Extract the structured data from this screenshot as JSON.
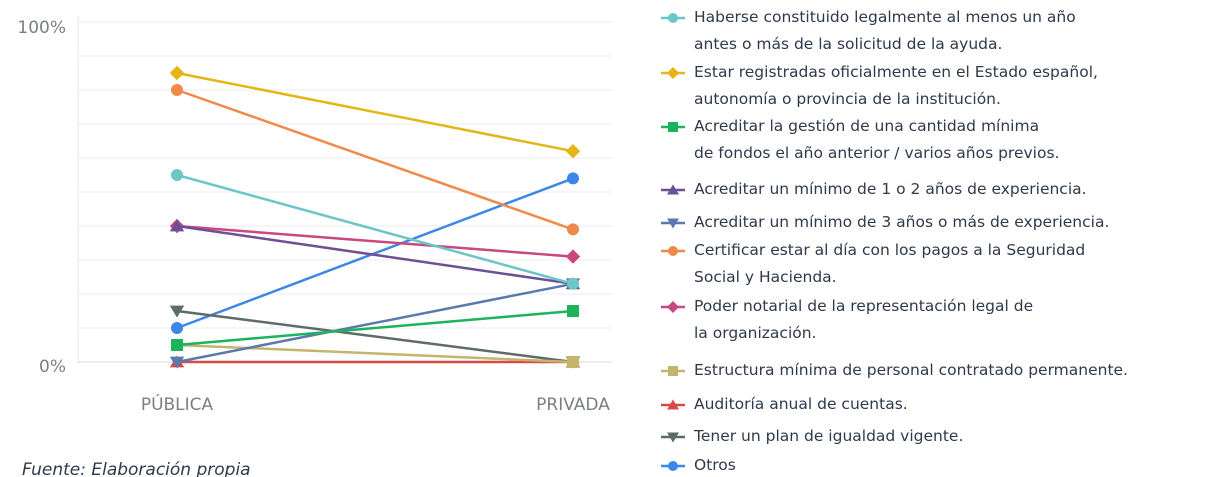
{
  "chart_data": {
    "type": "line",
    "source": "Fuente: Elaboración propia",
    "categories": [
      "PÚBLICA",
      "PRIVADA"
    ],
    "ylim": [
      0,
      100
    ],
    "yticks": [
      {
        "value": 0,
        "label": "0%"
      },
      {
        "value": 100,
        "label": "100%"
      }
    ],
    "grid_yticks": [
      10,
      20,
      30,
      40,
      50,
      60,
      70,
      80,
      90
    ],
    "grid": true,
    "legend": "right",
    "series": [
      {
        "name": "Haberse constituido legalmente al menos un año\nantes o más de la solicitud de la ayuda.",
        "color": "#6cc6c8",
        "marker": "circle",
        "values": [
          55,
          23
        ]
      },
      {
        "name": "Estar registradas oficialmente en el Estado español,\nautonomía o provincia de la institución.",
        "color": "#e4b514",
        "marker": "diamond",
        "values": [
          85,
          62
        ]
      },
      {
        "name": "Acreditar la gestión de una cantidad mínima\nde fondos el año anterior / varios años previos.",
        "color": "#1db35c",
        "marker": "square",
        "values": [
          5,
          15
        ]
      },
      {
        "name": "Acreditar un mínimo de 1 o 2 años de experiencia.",
        "color": "#6d4f95",
        "marker": "triangle-up",
        "values": [
          40,
          23
        ]
      },
      {
        "name": "Acreditar un mínimo de 3 años o más de experiencia.",
        "color": "#5c79ad",
        "marker": "triangle-down",
        "values": [
          0,
          23
        ]
      },
      {
        "name": "Certificar estar al día con los pagos a la Seguridad\nSocial y Hacienda.",
        "color": "#f08a4b",
        "marker": "circle",
        "values": [
          80,
          39
        ]
      },
      {
        "name": "Poder notarial de la representación legal de\nla organización.",
        "color": "#c8487f",
        "marker": "diamond",
        "values": [
          40,
          31
        ]
      },
      {
        "name": "Estructura mínima de personal contratado permanente.",
        "color": "#c5b56c",
        "marker": "square",
        "values": [
          5,
          0
        ]
      },
      {
        "name": "Auditoría anual de cuentas.",
        "color": "#d84a4a",
        "marker": "triangle-up",
        "values": [
          0,
          0
        ]
      },
      {
        "name": "Tener un plan de igualdad vigente.",
        "color": "#5f6a6a",
        "marker": "triangle-down",
        "values": [
          15,
          0
        ]
      },
      {
        "name": "Otros",
        "color": "#3b87e8",
        "marker": "circle",
        "values": [
          10,
          54
        ]
      }
    ]
  }
}
